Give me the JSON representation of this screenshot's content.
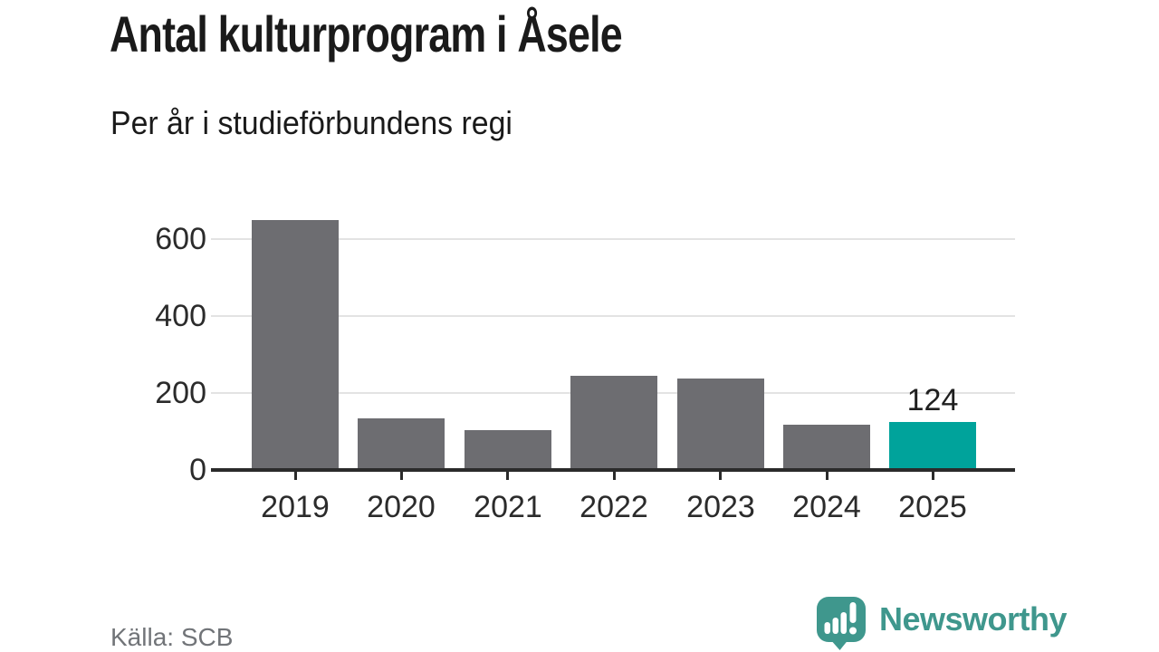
{
  "chart_data": {
    "type": "bar",
    "title": "Antal kulturprogram i Åsele",
    "subtitle": "Per år i studieförbundens regi",
    "categories": [
      "2019",
      "2020",
      "2021",
      "2022",
      "2023",
      "2024",
      "2025"
    ],
    "values": [
      650,
      134,
      104,
      244,
      238,
      117,
      124
    ],
    "value_labels": [
      null,
      null,
      null,
      null,
      null,
      null,
      "124"
    ],
    "highlight_index": 6,
    "xlabel": "",
    "ylabel": "",
    "yticks": [
      0,
      200,
      400,
      600
    ],
    "ylim": [
      0,
      706
    ],
    "grid": "horizontal",
    "legend_position": "none",
    "source": "Källa: SCB"
  },
  "footer": {
    "brand": "Newsworthy"
  },
  "colors": {
    "bar_default": "#6D6D71",
    "bar_highlight": "#00A39B",
    "gridline": "#E3E3E3",
    "axis": "#2B2B2B",
    "title_text": "#1A1A1A",
    "tick_text": "#2B2B2B",
    "source_text": "#717478",
    "brand_teal": "#3F978D"
  },
  "icons": {
    "brand_icon": "newsworthy-speech-bubble-bar-chart-icon"
  }
}
